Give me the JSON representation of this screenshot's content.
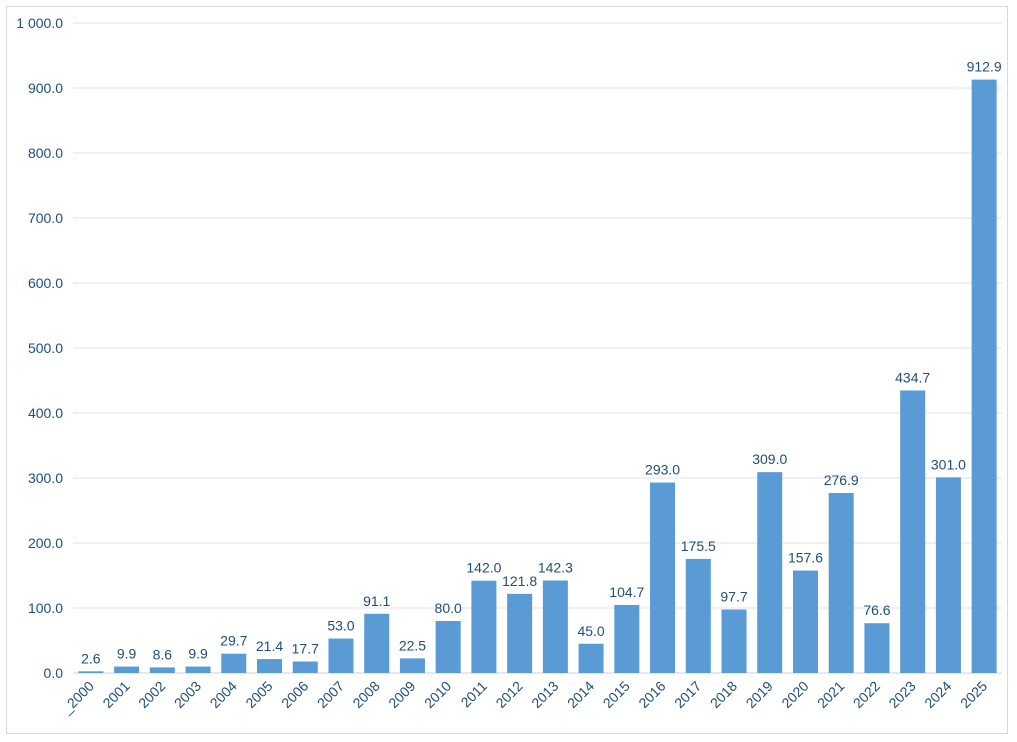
{
  "chart_data": {
    "type": "bar",
    "title": "",
    "xlabel": "",
    "ylabel": "",
    "categories": [
      "_2000",
      "2001",
      "2002",
      "2003",
      "2004",
      "2005",
      "2006",
      "2007",
      "2008",
      "2009",
      "2010",
      "2011",
      "2012",
      "2013",
      "2014",
      "2015",
      "2016",
      "2017",
      "2018",
      "2019",
      "2020",
      "2021",
      "2022",
      "2023",
      "2024",
      "2025"
    ],
    "values": [
      2.6,
      9.9,
      8.6,
      9.9,
      29.7,
      21.4,
      17.7,
      53.0,
      91.1,
      22.5,
      80.0,
      142.0,
      121.8,
      142.3,
      45.0,
      104.7,
      293.0,
      175.5,
      97.7,
      309.0,
      157.6,
      276.9,
      76.6,
      434.7,
      301.0,
      912.9
    ],
    "data_labels": [
      "2.6",
      "9.9",
      "8.6",
      "9.9",
      "29.7",
      "21.4",
      "17.7",
      "53.0",
      "91.1",
      "22.5",
      "80.0",
      "142.0",
      "121.8",
      "142.3",
      "45.0",
      "104.7",
      "293.0",
      "175.5",
      "97.7",
      "309.0",
      "157.6",
      "276.9",
      "76.6",
      "434.7",
      "301.0",
      "912.9"
    ],
    "ylim": [
      0,
      1000
    ],
    "y_ticks": [
      0,
      100,
      200,
      300,
      400,
      500,
      600,
      700,
      800,
      900,
      1000
    ],
    "y_tick_labels": [
      "0.0",
      "100.0",
      "200.0",
      "300.0",
      "400.0",
      "500.0",
      "600.0",
      "700.0",
      "800.0",
      "900.0",
      "1 000.0"
    ],
    "grid": true,
    "legend": "none",
    "bar_color": "#5b9bd5",
    "label_color": "#1f4e79"
  }
}
